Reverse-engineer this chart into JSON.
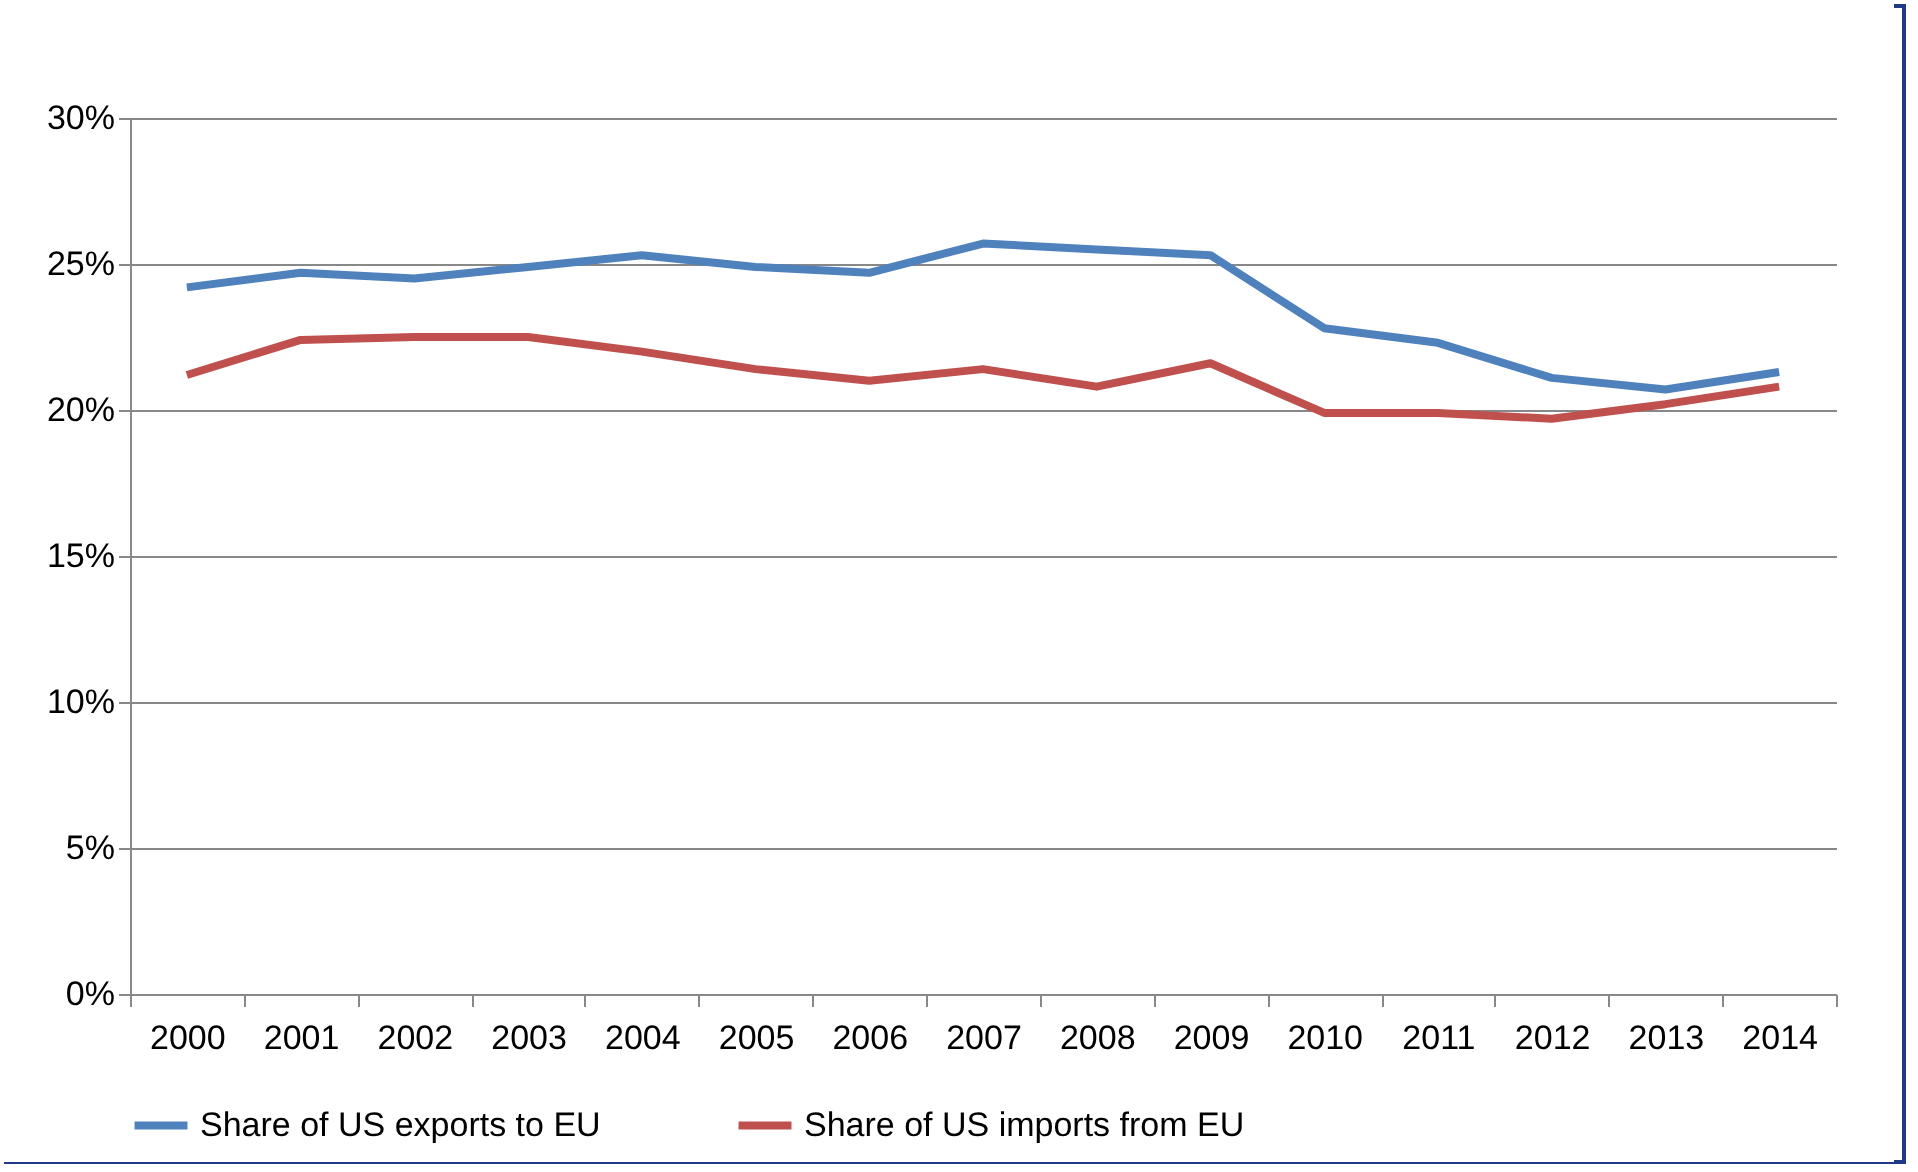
{
  "chart_data": {
    "type": "line",
    "categories": [
      "2000",
      "2001",
      "2002",
      "2003",
      "2004",
      "2005",
      "2006",
      "2007",
      "2008",
      "2009",
      "2010",
      "2011",
      "2012",
      "2013",
      "2014"
    ],
    "series": [
      {
        "name": "Share of US exports to EU",
        "color": "#4f81bd",
        "values": [
          24.2,
          24.7,
          24.5,
          24.9,
          25.3,
          24.9,
          24.7,
          25.7,
          25.5,
          25.3,
          22.8,
          22.3,
          21.1,
          20.7,
          21.3
        ]
      },
      {
        "name": "Share of US imports from EU",
        "color": "#c0504d",
        "values": [
          21.2,
          22.4,
          22.5,
          22.5,
          22.0,
          21.4,
          21.0,
          21.4,
          20.8,
          21.6,
          19.9,
          19.9,
          19.7,
          20.2,
          20.8
        ]
      }
    ],
    "ylim": [
      0,
      30
    ],
    "yticks": [
      {
        "value": 0,
        "label": "0%"
      },
      {
        "value": 5,
        "label": "5%"
      },
      {
        "value": 10,
        "label": "10%"
      },
      {
        "value": 15,
        "label": "15%"
      },
      {
        "value": 20,
        "label": "20%"
      },
      {
        "value": 25,
        "label": "25%"
      },
      {
        "value": 30,
        "label": "30%"
      }
    ],
    "grid": "y",
    "legend": "bottom",
    "marker": "none",
    "line_style": "solid"
  }
}
